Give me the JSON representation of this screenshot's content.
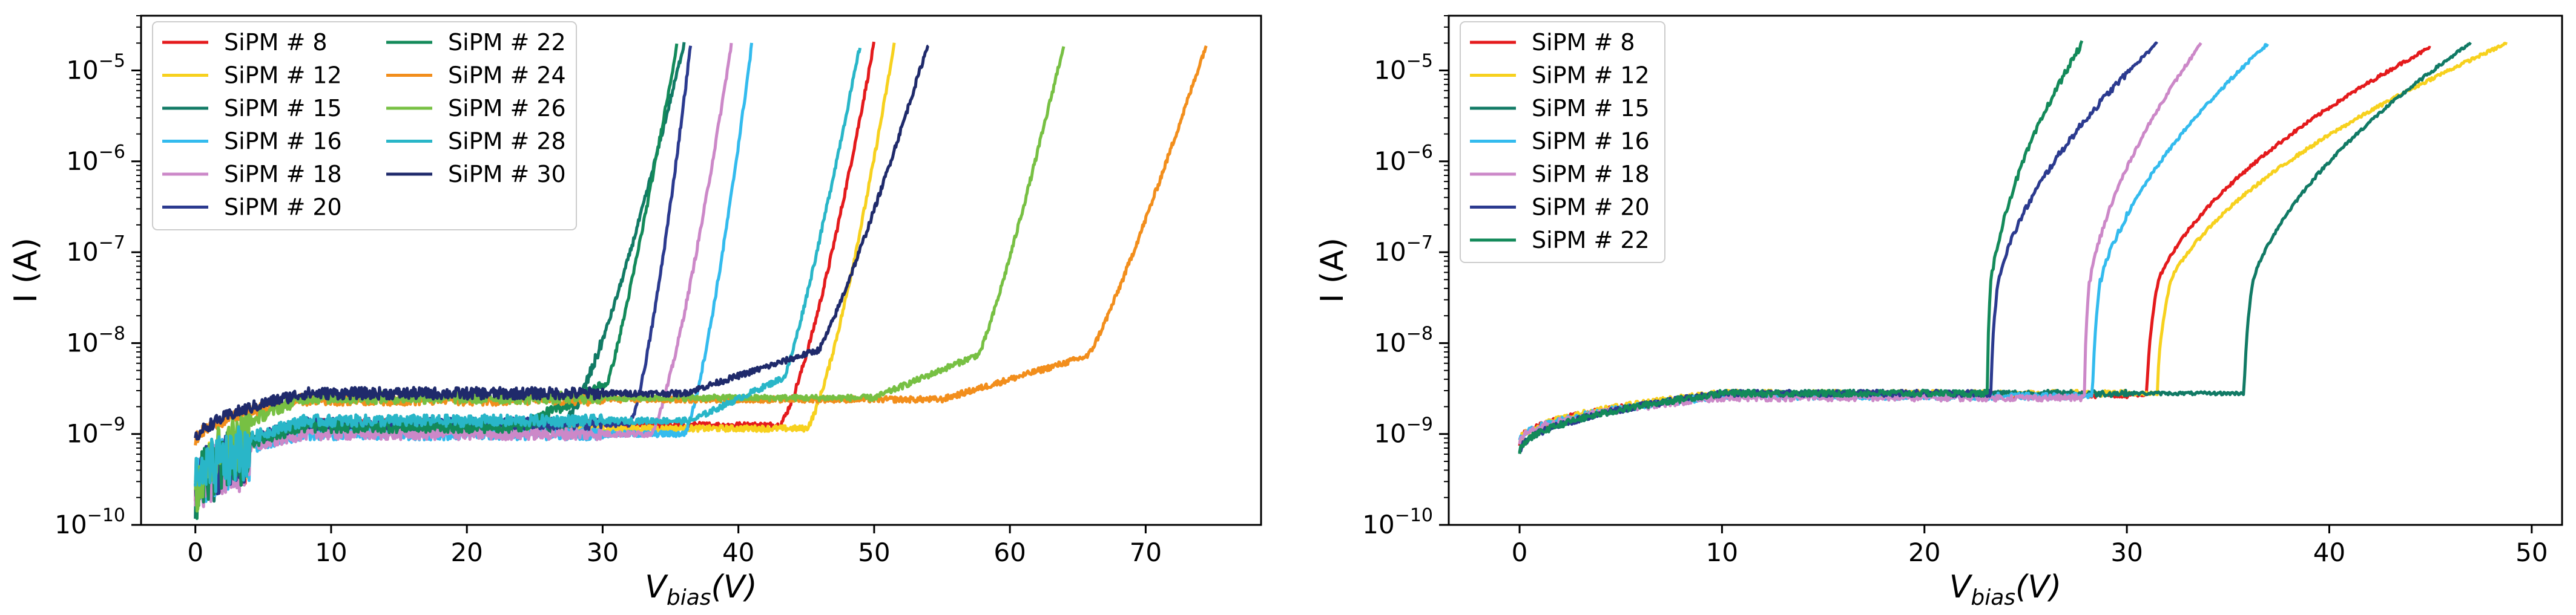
{
  "chart_data": [
    {
      "type": "line",
      "xlabel": "V",
      "xlabel_sub": "bias",
      "xlabel_suffix": "(V)",
      "ylabel": "I (A)",
      "yscale": "log",
      "xlim": [
        -4,
        78.5
      ],
      "ylim": [
        1e-10,
        4e-05
      ],
      "xticks": [
        0,
        10,
        20,
        30,
        40,
        50,
        60,
        70
      ],
      "xtick_labels": [
        "0",
        "10",
        "20",
        "30",
        "40",
        "50",
        "60",
        "70"
      ],
      "ytick_exponents": [
        -10,
        -9,
        -8,
        -7,
        -6,
        -5
      ],
      "legend_location": "upper-left",
      "legend_columns": 2,
      "series": [
        {
          "name": "SiPM # 8",
          "color": "#e41a1c",
          "startLevel": 3e-10,
          "plateau": 1.25e-09,
          "breakdown": 43.0,
          "kneeV": 44.5,
          "endV": 50.0,
          "shape": "steep"
        },
        {
          "name": "SiPM # 12",
          "color": "#f7d11e",
          "startLevel": 3e-10,
          "plateau": 1.15e-09,
          "breakdown": 45.0,
          "kneeV": 47.0,
          "endV": 51.5,
          "shape": "steep"
        },
        {
          "name": "SiPM # 15",
          "color": "#117a65",
          "startLevel": 3e-10,
          "plateau": 1.2e-09,
          "breakdown": 27.0,
          "kneeV": 28.5,
          "endV": 36.0,
          "shape": "steep"
        },
        {
          "name": "SiPM # 16",
          "color": "#33bbee",
          "startLevel": 3e-10,
          "plateau": 1e-09,
          "breakdown": 36.0,
          "kneeV": 37.0,
          "endV": 41.0,
          "shape": "steep"
        },
        {
          "name": "SiPM # 18",
          "color": "#cc88c8",
          "startLevel": 3e-10,
          "plateau": 1e-09,
          "breakdown": 33.5,
          "kneeV": 35.5,
          "endV": 39.5,
          "shape": "steep"
        },
        {
          "name": "SiPM # 20",
          "color": "#2b3a8f",
          "startLevel": 3e-10,
          "plateau": 1.3e-09,
          "breakdown": 32.0,
          "kneeV": 33.0,
          "endV": 36.5,
          "shape": "steep"
        },
        {
          "name": "SiPM # 22",
          "color": "#138a5a",
          "startLevel": 3e-10,
          "plateau": 1.2e-09,
          "breakdown": 24.0,
          "kneeV": 25.5,
          "endV": 35.5,
          "shape": "gradual"
        },
        {
          "name": "SiPM # 24",
          "color": "#f28e1c",
          "startLevel": 8e-10,
          "plateau": 2.4e-09,
          "breakdown": 55.0,
          "kneeV": 56.0,
          "endV": 74.5,
          "shape": "gradual"
        },
        {
          "name": "SiPM # 26",
          "color": "#77c043",
          "startLevel": 3e-10,
          "plateau": 2.5e-09,
          "breakdown": 50.0,
          "kneeV": 51.0,
          "endV": 64.0,
          "shape": "gradual"
        },
        {
          "name": "SiPM # 28",
          "color": "#29b6c8",
          "startLevel": 3e-10,
          "plateau": 1.4e-09,
          "breakdown": 36.5,
          "kneeV": 37.5,
          "endV": 49.0,
          "shape": "gradual"
        },
        {
          "name": "SiPM # 30",
          "color": "#1f2a6b",
          "startLevel": 8e-10,
          "plateau": 2.8e-09,
          "breakdown": 36.0,
          "kneeV": 37.0,
          "endV": 54.0,
          "shape": "gradual"
        }
      ]
    },
    {
      "type": "line",
      "xlabel": "V",
      "xlabel_sub": "bias",
      "xlabel_suffix": "(V)",
      "ylabel": "I (A)",
      "yscale": "log",
      "xlim": [
        -3.5,
        51.5
      ],
      "ylim": [
        1e-10,
        4e-05
      ],
      "xticks": [
        0,
        10,
        20,
        30,
        40,
        50
      ],
      "xtick_labels": [
        "0",
        "10",
        "20",
        "30",
        "40",
        "50"
      ],
      "ytick_exponents": [
        -10,
        -9,
        -8,
        -7,
        -6,
        -5
      ],
      "legend_location": "upper-left",
      "legend_columns": 1,
      "series": [
        {
          "name": "SiPM # 8",
          "color": "#e41a1c",
          "startLevel": 8e-10,
          "plateau": 2.7e-09,
          "breakdown": 31.0,
          "endV": 45.0,
          "onset": 3e-09,
          "top": 1.8e-05
        },
        {
          "name": "SiPM # 12",
          "color": "#f7d11e",
          "startLevel": 8e-10,
          "plateau": 2.8e-09,
          "breakdown": 31.5,
          "endV": 48.8,
          "onset": 3e-09,
          "top": 2e-05
        },
        {
          "name": "SiPM # 15",
          "color": "#117a65",
          "startLevel": 6e-10,
          "plateau": 2.8e-09,
          "breakdown": 35.8,
          "endV": 47.0,
          "onset": 3e-09,
          "top": 2e-05
        },
        {
          "name": "SiPM # 16",
          "color": "#33bbee",
          "startLevel": 8e-10,
          "plateau": 2.6e-09,
          "breakdown": 28.3,
          "endV": 37.0,
          "onset": 2.5e-09,
          "top": 2e-05
        },
        {
          "name": "SiPM # 18",
          "color": "#cc88c8",
          "startLevel": 8e-10,
          "plateau": 2.5e-09,
          "breakdown": 27.9,
          "endV": 33.7,
          "onset": 2.5e-09,
          "top": 2e-05
        },
        {
          "name": "SiPM # 20",
          "color": "#2b3a8f",
          "startLevel": 6e-10,
          "plateau": 2.8e-09,
          "breakdown": 23.3,
          "endV": 31.5,
          "onset": 2.8e-09,
          "top": 2e-05
        },
        {
          "name": "SiPM # 22",
          "color": "#138a5a",
          "startLevel": 6e-10,
          "plateau": 2.8e-09,
          "breakdown": 23.1,
          "endV": 27.8,
          "onset": 2.8e-09,
          "top": 2e-05
        }
      ]
    }
  ]
}
